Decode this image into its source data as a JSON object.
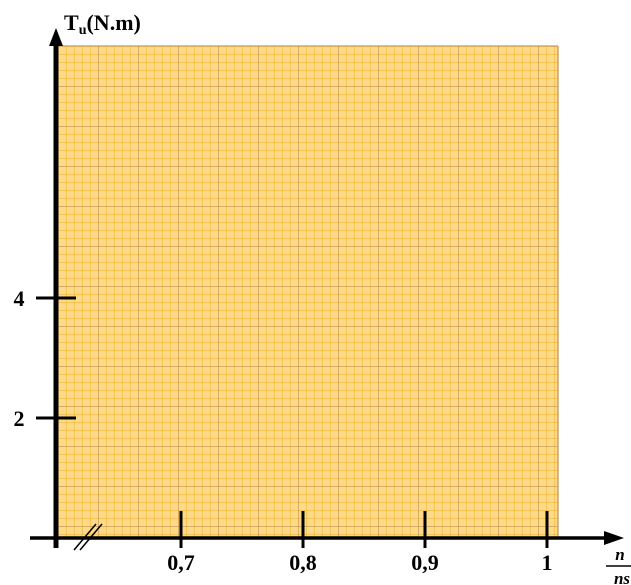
{
  "chart_data": {
    "type": "scatter",
    "title": "",
    "ylabel": {
      "main": "T",
      "sub": "u",
      "unit": "(N.m)"
    },
    "xlabel": {
      "numerator": "n",
      "denominator": "ns"
    },
    "x_ticks": [
      "0,7",
      "0,8",
      "0,9",
      "1"
    ],
    "x_tick_values": [
      0.7,
      0.8,
      0.9,
      1.0
    ],
    "y_ticks": [
      "2",
      "4"
    ],
    "y_tick_values": [
      2,
      4
    ],
    "xlim": [
      0.6,
      1.0
    ],
    "ylim": [
      0,
      8.2
    ],
    "x_axis_break": true,
    "grid": true,
    "series": [],
    "colors": {
      "paper": "#fdd98a",
      "minor_grid": "#f0b020",
      "major_grid": "#b8823a",
      "axis": "#000000"
    }
  }
}
